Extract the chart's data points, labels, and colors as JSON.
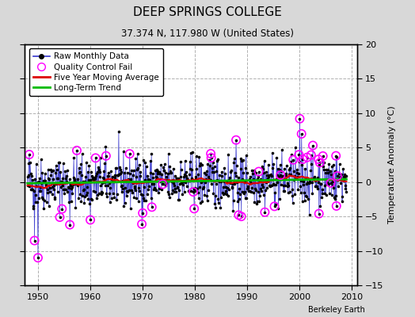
{
  "title": "DEEP SPRINGS COLLEGE",
  "subtitle": "37.374 N, 117.980 W (United States)",
  "watermark": "Berkeley Earth",
  "x_start_year": 1947.5,
  "x_end_year": 2011.0,
  "ylim": [
    -15,
    20
  ],
  "yticks": [
    -15,
    -10,
    -5,
    0,
    5,
    10,
    15,
    20
  ],
  "xticks": [
    1950,
    1960,
    1970,
    1980,
    1990,
    2000,
    2010
  ],
  "bg_color": "#d8d8d8",
  "plot_bg_color": "#ffffff",
  "grid_color": "#b0b0b0",
  "raw_line_color": "#3333cc",
  "raw_dot_color": "#000000",
  "qc_fail_color": "#ff00ff",
  "moving_avg_color": "#dd0000",
  "trend_color": "#00bb00",
  "seed": 42,
  "n_points": 732,
  "legend_labels": [
    "Raw Monthly Data",
    "Quality Control Fail",
    "Five Year Moving Average",
    "Long-Term Trend"
  ],
  "title_fontsize": 11,
  "subtitle_fontsize": 8.5,
  "legend_fontsize": 7.5,
  "tick_fontsize": 8,
  "ylabel_fontsize": 8
}
